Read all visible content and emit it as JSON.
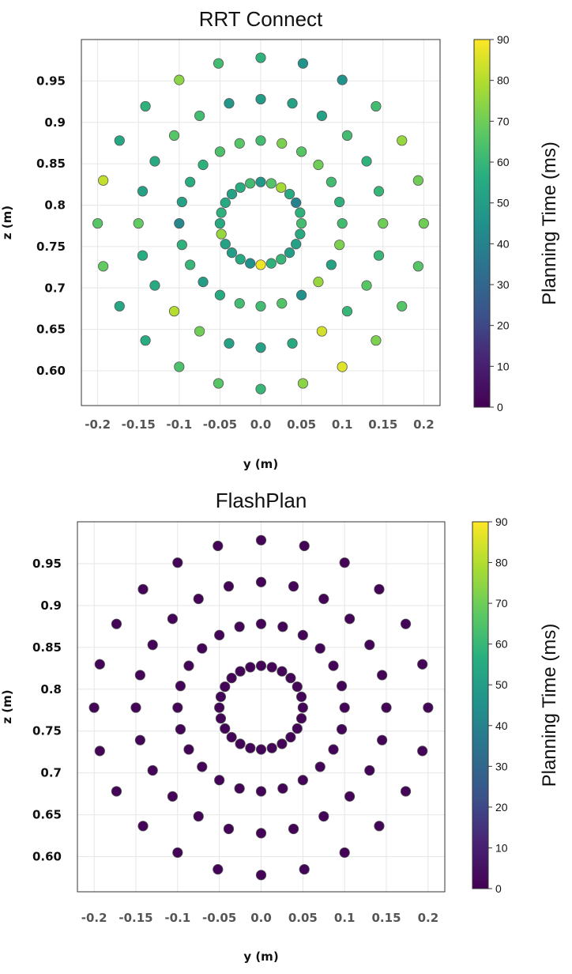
{
  "chart_data": [
    {
      "type": "scatter",
      "title": "RRT Connect",
      "xlabel": "y (m)",
      "ylabel": "z (m)",
      "xlim": [
        -0.22,
        0.22
      ],
      "ylim": [
        0.558,
        1.0
      ],
      "xticks": [
        -0.2,
        -0.15,
        -0.1,
        -0.05,
        0.0,
        0.05,
        0.1,
        0.15,
        0.2
      ],
      "xtick_labels": [
        "-0.2",
        "-0.15",
        "-0.1",
        "-0.05",
        "0.0",
        "0.05",
        "0.1",
        "0.15",
        "0.2"
      ],
      "yticks": [
        0.6,
        0.65,
        0.7,
        0.75,
        0.8,
        0.85,
        0.9,
        0.95
      ],
      "ytick_labels": [
        "0.60",
        "0.65",
        "0.7",
        "0.75",
        "0.8",
        "0.85",
        "0.9",
        "0.95"
      ],
      "grid": true,
      "colorbar": {
        "label": "Planning Time (ms)",
        "range": [
          0,
          90
        ],
        "ticks": [
          0,
          10,
          20,
          30,
          40,
          50,
          60,
          70,
          80,
          90
        ],
        "colormap": "viridis"
      },
      "points": [
        {
          "y": 0.0,
          "z": 0.828,
          "t": 48
        },
        {
          "y": 0.0129,
          "z": 0.8263,
          "t": 65
        },
        {
          "y": 0.025,
          "z": 0.8213,
          "t": 78
        },
        {
          "y": 0.0354,
          "z": 0.8134,
          "t": 55
        },
        {
          "y": 0.0433,
          "z": 0.803,
          "t": 40
        },
        {
          "y": 0.0483,
          "z": 0.7909,
          "t": 58
        },
        {
          "y": 0.05,
          "z": 0.778,
          "t": 62
        },
        {
          "y": 0.0483,
          "z": 0.7651,
          "t": 55
        },
        {
          "y": 0.0433,
          "z": 0.753,
          "t": 52
        },
        {
          "y": 0.0354,
          "z": 0.7426,
          "t": 50
        },
        {
          "y": 0.025,
          "z": 0.7347,
          "t": 60
        },
        {
          "y": 0.0129,
          "z": 0.7297,
          "t": 58
        },
        {
          "y": 0.0,
          "z": 0.728,
          "t": 88
        },
        {
          "y": -0.0129,
          "z": 0.7297,
          "t": 45
        },
        {
          "y": -0.025,
          "z": 0.7347,
          "t": 55
        },
        {
          "y": -0.0354,
          "z": 0.7426,
          "t": 50
        },
        {
          "y": -0.0433,
          "z": 0.753,
          "t": 52
        },
        {
          "y": -0.0483,
          "z": 0.7651,
          "t": 76
        },
        {
          "y": -0.05,
          "z": 0.778,
          "t": 55
        },
        {
          "y": -0.0483,
          "z": 0.7909,
          "t": 58
        },
        {
          "y": -0.0433,
          "z": 0.803,
          "t": 55
        },
        {
          "y": -0.0354,
          "z": 0.8134,
          "t": 52
        },
        {
          "y": -0.025,
          "z": 0.8213,
          "t": 56
        },
        {
          "y": -0.0129,
          "z": 0.8263,
          "t": 62
        },
        {
          "y": 0.0,
          "z": 0.878,
          "t": 62
        },
        {
          "y": 0.0259,
          "z": 0.8746,
          "t": 72
        },
        {
          "y": 0.05,
          "z": 0.8646,
          "t": 66
        },
        {
          "y": 0.0707,
          "z": 0.8487,
          "t": 70
        },
        {
          "y": 0.0866,
          "z": 0.828,
          "t": 62
        },
        {
          "y": 0.0966,
          "z": 0.8039,
          "t": 58
        },
        {
          "y": 0.1,
          "z": 0.778,
          "t": 62
        },
        {
          "y": 0.0966,
          "z": 0.7521,
          "t": 72
        },
        {
          "y": 0.0866,
          "z": 0.728,
          "t": 52
        },
        {
          "y": 0.0707,
          "z": 0.7073,
          "t": 76
        },
        {
          "y": 0.05,
          "z": 0.6914,
          "t": 45
        },
        {
          "y": 0.0259,
          "z": 0.6814,
          "t": 65
        },
        {
          "y": 0.0,
          "z": 0.678,
          "t": 62
        },
        {
          "y": -0.0259,
          "z": 0.6814,
          "t": 62
        },
        {
          "y": -0.05,
          "z": 0.6914,
          "t": 55
        },
        {
          "y": -0.0707,
          "z": 0.7073,
          "t": 50
        },
        {
          "y": -0.0866,
          "z": 0.728,
          "t": 60
        },
        {
          "y": -0.0966,
          "z": 0.7521,
          "t": 58
        },
        {
          "y": -0.1,
          "z": 0.778,
          "t": 42
        },
        {
          "y": -0.0966,
          "z": 0.8039,
          "t": 52
        },
        {
          "y": -0.0866,
          "z": 0.828,
          "t": 56
        },
        {
          "y": -0.0707,
          "z": 0.8487,
          "t": 58
        },
        {
          "y": -0.05,
          "z": 0.8646,
          "t": 64
        },
        {
          "y": -0.0259,
          "z": 0.8746,
          "t": 66
        },
        {
          "y": 0.0,
          "z": 0.928,
          "t": 50
        },
        {
          "y": 0.0388,
          "z": 0.9229,
          "t": 52
        },
        {
          "y": 0.075,
          "z": 0.9079,
          "t": 52
        },
        {
          "y": 0.1061,
          "z": 0.8841,
          "t": 62
        },
        {
          "y": 0.1299,
          "z": 0.853,
          "t": 58
        },
        {
          "y": 0.1449,
          "z": 0.8168,
          "t": 60
        },
        {
          "y": 0.15,
          "z": 0.778,
          "t": 70
        },
        {
          "y": 0.1449,
          "z": 0.7392,
          "t": 60
        },
        {
          "y": 0.1299,
          "z": 0.703,
          "t": 66
        },
        {
          "y": 0.1061,
          "z": 0.6719,
          "t": 60
        },
        {
          "y": 0.075,
          "z": 0.6477,
          "t": 84
        },
        {
          "y": 0.0388,
          "z": 0.6331,
          "t": 55
        },
        {
          "y": 0.0,
          "z": 0.628,
          "t": 52
        },
        {
          "y": -0.0388,
          "z": 0.6331,
          "t": 52
        },
        {
          "y": -0.075,
          "z": 0.6477,
          "t": 70
        },
        {
          "y": -0.1061,
          "z": 0.6719,
          "t": 80
        },
        {
          "y": -0.1299,
          "z": 0.703,
          "t": 55
        },
        {
          "y": -0.1449,
          "z": 0.7392,
          "t": 56
        },
        {
          "y": -0.15,
          "z": 0.778,
          "t": 68
        },
        {
          "y": -0.1449,
          "z": 0.8168,
          "t": 52
        },
        {
          "y": -0.1299,
          "z": 0.853,
          "t": 55
        },
        {
          "y": -0.1061,
          "z": 0.8841,
          "t": 66
        },
        {
          "y": -0.075,
          "z": 0.9079,
          "t": 62
        },
        {
          "y": -0.0388,
          "z": 0.9229,
          "t": 48
        },
        {
          "y": 0.0,
          "z": 0.978,
          "t": 58
        },
        {
          "y": 0.0518,
          "z": 0.9712,
          "t": 46
        },
        {
          "y": 0.1,
          "z": 0.9512,
          "t": 46
        },
        {
          "y": 0.1414,
          "z": 0.9194,
          "t": 62
        },
        {
          "y": 0.1732,
          "z": 0.878,
          "t": 76
        },
        {
          "y": 0.1932,
          "z": 0.8298,
          "t": 70
        },
        {
          "y": 0.2,
          "z": 0.778,
          "t": 70
        },
        {
          "y": 0.1932,
          "z": 0.7262,
          "t": 66
        },
        {
          "y": 0.1732,
          "z": 0.678,
          "t": 66
        },
        {
          "y": 0.1414,
          "z": 0.6366,
          "t": 72
        },
        {
          "y": 0.1,
          "z": 0.6048,
          "t": 86
        },
        {
          "y": 0.0518,
          "z": 0.5848,
          "t": 74
        },
        {
          "y": 0.0,
          "z": 0.578,
          "t": 60
        },
        {
          "y": -0.0518,
          "z": 0.5848,
          "t": 66
        },
        {
          "y": -0.1,
          "z": 0.6048,
          "t": 64
        },
        {
          "y": -0.1414,
          "z": 0.6366,
          "t": 56
        },
        {
          "y": -0.1732,
          "z": 0.678,
          "t": 54
        },
        {
          "y": -0.1932,
          "z": 0.7262,
          "t": 68
        },
        {
          "y": -0.2,
          "z": 0.778,
          "t": 66
        },
        {
          "y": -0.1932,
          "z": 0.8298,
          "t": 82
        },
        {
          "y": -0.1732,
          "z": 0.878,
          "t": 54
        },
        {
          "y": -0.1414,
          "z": 0.9194,
          "t": 58
        },
        {
          "y": -0.1,
          "z": 0.9512,
          "t": 74
        },
        {
          "y": -0.0518,
          "z": 0.9712,
          "t": 62
        }
      ]
    },
    {
      "type": "scatter",
      "title": "FlashPlan",
      "xlabel": "y (m)",
      "ylabel": "z (m)",
      "xlim": [
        -0.22,
        0.22
      ],
      "ylim": [
        0.558,
        1.0
      ],
      "xticks": [
        -0.2,
        -0.15,
        -0.1,
        -0.05,
        0.0,
        0.05,
        0.1,
        0.15,
        0.2
      ],
      "xtick_labels": [
        "-0.2",
        "-0.15",
        "-0.1",
        "-0.05",
        "0.0",
        "0.05",
        "0.1",
        "0.15",
        "0.2"
      ],
      "yticks": [
        0.6,
        0.65,
        0.7,
        0.75,
        0.8,
        0.85,
        0.9,
        0.95
      ],
      "ytick_labels": [
        "0.60",
        "0.65",
        "0.7",
        "0.75",
        "0.8",
        "0.85",
        "0.9",
        "0.95"
      ],
      "grid": true,
      "colorbar": {
        "label": "Planning Time (ms)",
        "range": [
          0,
          90
        ],
        "ticks": [
          0,
          10,
          20,
          30,
          40,
          50,
          60,
          70,
          80,
          90
        ],
        "colormap": "viridis"
      },
      "point_value_all": 1,
      "rings": [
        {
          "center": [
            0.0,
            0.778
          ],
          "radius": 0.05,
          "count": 24,
          "start_angle_deg": 90
        },
        {
          "center": [
            0.0,
            0.778
          ],
          "radius": 0.1,
          "count": 24,
          "start_angle_deg": 90
        },
        {
          "center": [
            0.0,
            0.778
          ],
          "radius": 0.15,
          "count": 24,
          "start_angle_deg": 90
        },
        {
          "center": [
            0.0,
            0.778
          ],
          "radius": 0.2,
          "count": 24,
          "start_angle_deg": 90
        }
      ]
    }
  ],
  "colors": {
    "marker_edge": "#555555",
    "grid": "#e6e6e6",
    "axes_edge": "#333333"
  }
}
